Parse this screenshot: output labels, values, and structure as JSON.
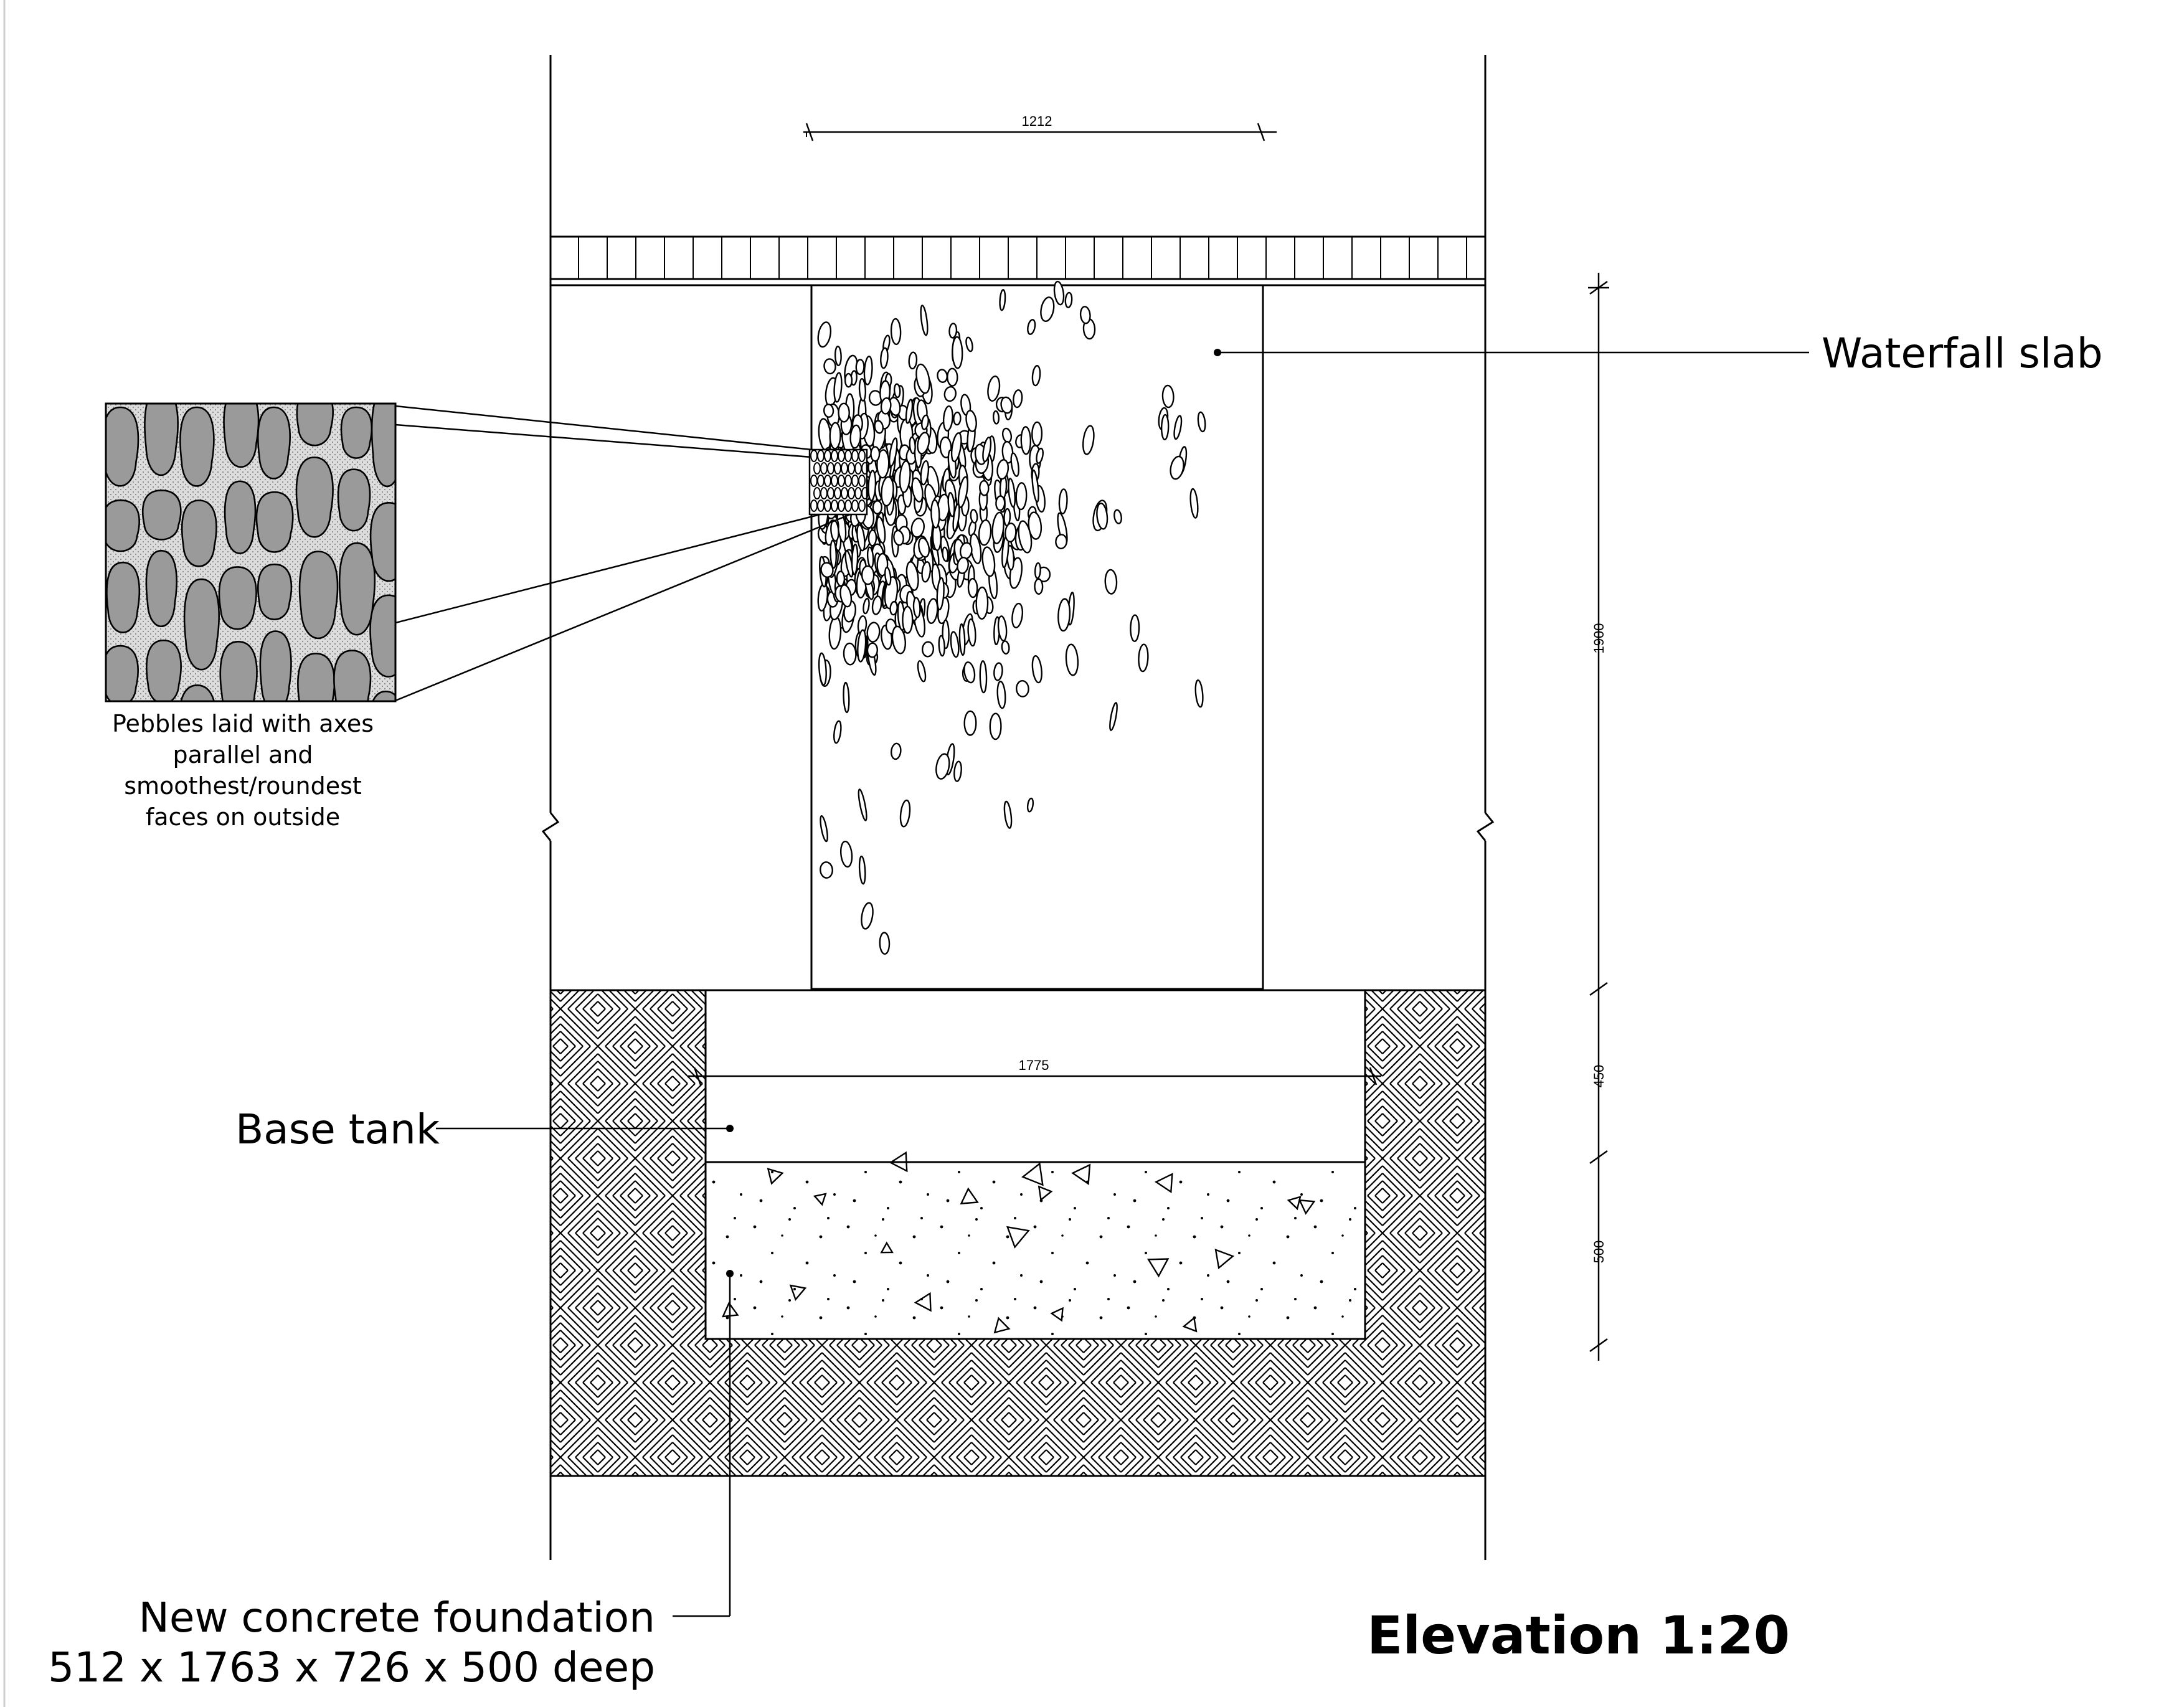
{
  "title": "Elevation 1:20",
  "dimensions": {
    "slab_width": "1212",
    "tank_width": "1775",
    "slab_height": "1900",
    "tank_height": "450",
    "foundation_depth": "500"
  },
  "labels": {
    "waterfall_slab": "Waterfall slab",
    "base_tank": "Base tank",
    "foundation_line1": "New concrete foundation",
    "foundation_line2": "512 x 1763 x 726 x 500 deep"
  },
  "detail_note": [
    "Pebbles laid with axes",
    "parallel and",
    "smoothest/roundest",
    "faces on outside"
  ],
  "colors": {
    "line": "#000000",
    "pebble_fill": "#9a9a9a",
    "detail_background": "#dcdcdc"
  }
}
